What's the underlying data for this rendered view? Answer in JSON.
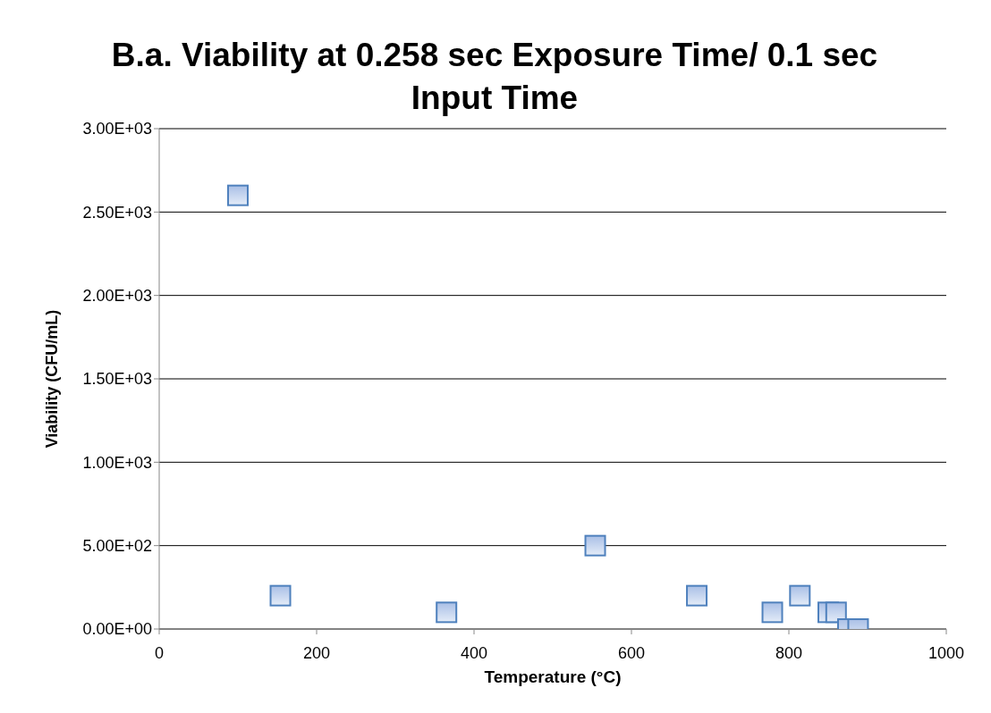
{
  "chart_data": {
    "type": "scatter",
    "title": "B.a. Viability at 0.258 sec Exposure Time/ 0.1 sec Input Time",
    "xlabel": "Temperature (°C)",
    "ylabel": "Viability (CFU/mL)",
    "series": [
      {
        "color": "#4f81bd",
        "x": [
          100,
          154,
          365,
          554,
          683,
          779,
          814,
          850,
          860,
          875,
          888
        ],
        "values": [
          2600,
          200,
          100,
          500,
          200,
          100,
          200,
          100,
          100,
          0,
          0
        ]
      }
    ],
    "xlim": [
      0,
      1000
    ],
    "xticks": [
      0,
      200,
      400,
      600,
      800,
      1000
    ],
    "ylim": [
      0,
      3000
    ],
    "yticks": [
      {
        "value": 0,
        "label": "0.00E+00"
      },
      {
        "value": 500,
        "label": "5.00E+02"
      },
      {
        "value": 1000,
        "label": "1.00E+03"
      },
      {
        "value": 1500,
        "label": "1.50E+03"
      },
      {
        "value": 2000,
        "label": "2.00E+03"
      },
      {
        "value": 2500,
        "label": "2.50E+03"
      },
      {
        "value": 3000,
        "label": "3.00E+03"
      }
    ],
    "grid": "y",
    "marker": "square"
  }
}
